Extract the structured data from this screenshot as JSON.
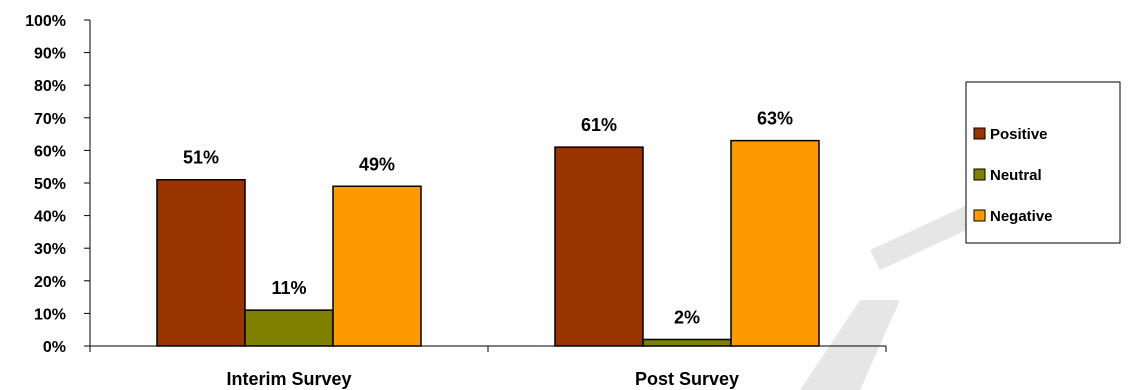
{
  "chart_data": {
    "type": "bar",
    "categories": [
      "Interim Survey",
      "Post Survey"
    ],
    "series": [
      {
        "name": "Positive",
        "values": [
          51,
          61
        ],
        "color": "#993300"
      },
      {
        "name": "Neutral",
        "values": [
          11,
          2
        ],
        "color": "#808000"
      },
      {
        "name": "Negative",
        "values": [
          49,
          63
        ],
        "color": "#FF9900"
      }
    ],
    "data_labels": [
      [
        "51%",
        "61%"
      ],
      [
        "11%",
        "2%"
      ],
      [
        "49%",
        "63%"
      ]
    ],
    "yticks": [
      "0%",
      "10%",
      "20%",
      "30%",
      "40%",
      "50%",
      "60%",
      "70%",
      "80%",
      "90%",
      "100%"
    ],
    "ylim": [
      0,
      100
    ],
    "grid": false,
    "legend_position": "right",
    "title": "",
    "xlabel": "",
    "ylabel": ""
  },
  "colors": {
    "bar_outline": "#000000",
    "axis": "#000000",
    "watermark": "#E6E6E6"
  }
}
